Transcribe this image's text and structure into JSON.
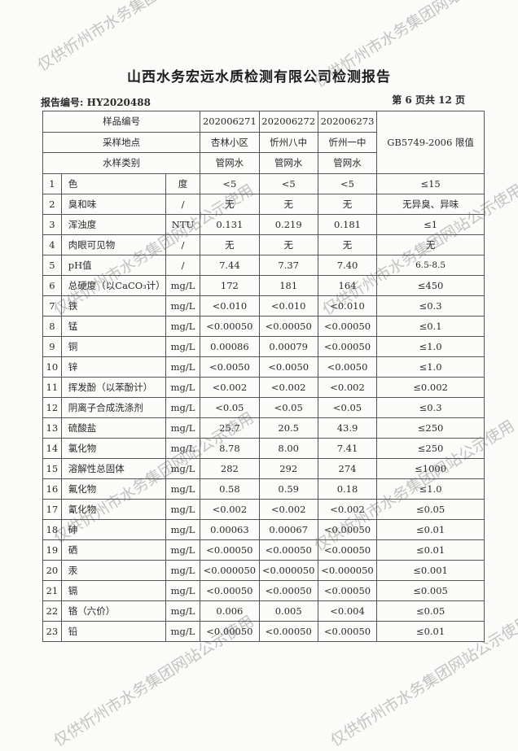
{
  "title": "山西水务宏远水质检测有限公司检测报告",
  "report_no": "报告编号: HY2020488",
  "page_info": "第 6 页共 12 页",
  "watermark": "仅供忻州市水务集团网站公示使用",
  "header": {
    "sample_no_label": "样品编号",
    "location_label": "采样地点",
    "type_label": "水样类别",
    "limit_label": "GB5749-2006 限值",
    "samples": [
      {
        "no": "202006271",
        "location": "杏林小区",
        "type": "管网水"
      },
      {
        "no": "202006272",
        "location": "忻州八中",
        "type": "管网水"
      },
      {
        "no": "202006273",
        "location": "忻州一中",
        "type": "管网水"
      }
    ]
  },
  "rows": [
    {
      "num": "1",
      "name": "色",
      "unit": "度",
      "v": [
        "<5",
        "<5",
        "<5"
      ],
      "limit": "≤15"
    },
    {
      "num": "2",
      "name": "臭和味",
      "unit": "/",
      "v": [
        "无",
        "无",
        "无"
      ],
      "limit": "无异臭、异味"
    },
    {
      "num": "3",
      "name": "浑浊度",
      "unit": "NTU",
      "v": [
        "0.131",
        "0.219",
        "0.181"
      ],
      "limit": "≤1"
    },
    {
      "num": "4",
      "name": "肉眼可见物",
      "unit": "/",
      "v": [
        "无",
        "无",
        "无"
      ],
      "limit": "无"
    },
    {
      "num": "5",
      "name": "pH值",
      "unit": "/",
      "v": [
        "7.44",
        "7.37",
        "7.40"
      ],
      "limit": "6.5-8.5"
    },
    {
      "num": "6",
      "name": "总硬度（以CaCO₃计）",
      "unit": "mg/L",
      "v": [
        "172",
        "181",
        "164"
      ],
      "limit": "≤450"
    },
    {
      "num": "7",
      "name": "铁",
      "unit": "mg/L",
      "v": [
        "<0.010",
        "<0.010",
        "<0.010"
      ],
      "limit": "≤0.3"
    },
    {
      "num": "8",
      "name": "锰",
      "unit": "mg/L",
      "v": [
        "<0.00050",
        "<0.00050",
        "<0.00050"
      ],
      "limit": "≤0.1"
    },
    {
      "num": "9",
      "name": "铜",
      "unit": "mg/L",
      "v": [
        "0.00086",
        "0.00079",
        "<0.00050"
      ],
      "limit": "≤1.0"
    },
    {
      "num": "10",
      "name": "锌",
      "unit": "mg/L",
      "v": [
        "<0.0050",
        "<0.0050",
        "<0.0050"
      ],
      "limit": "≤1.0"
    },
    {
      "num": "11",
      "name": "挥发酚（以苯酚计）",
      "unit": "mg/L",
      "v": [
        "<0.002",
        "<0.002",
        "<0.002"
      ],
      "limit": "≤0.002"
    },
    {
      "num": "12",
      "name": "阴离子合成洗涤剂",
      "unit": "mg/L",
      "v": [
        "<0.05",
        "<0.05",
        "<0.05"
      ],
      "limit": "≤0.3"
    },
    {
      "num": "13",
      "name": "硫酸盐",
      "unit": "mg/L",
      "v": [
        "25.7",
        "20.5",
        "43.9"
      ],
      "limit": "≤250"
    },
    {
      "num": "14",
      "name": "氯化物",
      "unit": "mg/L",
      "v": [
        "8.78",
        "8.00",
        "7.41"
      ],
      "limit": "≤250"
    },
    {
      "num": "15",
      "name": "溶解性总固体",
      "unit": "mg/L",
      "v": [
        "282",
        "292",
        "274"
      ],
      "limit": "≤1000"
    },
    {
      "num": "16",
      "name": "氟化物",
      "unit": "mg/L",
      "v": [
        "0.58",
        "0.59",
        "0.18"
      ],
      "limit": "≤1.0"
    },
    {
      "num": "17",
      "name": "氰化物",
      "unit": "mg/L",
      "v": [
        "<0.002",
        "<0.002",
        "<0.002"
      ],
      "limit": "≤0.05"
    },
    {
      "num": "18",
      "name": "砷",
      "unit": "mg/L",
      "v": [
        "0.00063",
        "0.00067",
        "<0.00050"
      ],
      "limit": "≤0.01"
    },
    {
      "num": "19",
      "name": "硒",
      "unit": "mg/L",
      "v": [
        "<0.00050",
        "<0.00050",
        "<0.00050"
      ],
      "limit": "≤0.01"
    },
    {
      "num": "20",
      "name": "汞",
      "unit": "mg/L",
      "v": [
        "<0.000050",
        "<0.000050",
        "<0.000050"
      ],
      "limit": "≤0.001"
    },
    {
      "num": "21",
      "name": "镉",
      "unit": "mg/L",
      "v": [
        "<0.00050",
        "<0.00050",
        "<0.00050"
      ],
      "limit": "≤0.005"
    },
    {
      "num": "22",
      "name": "铬（六价）",
      "unit": "mg/L",
      "v": [
        "0.006",
        "0.005",
        "<0.004"
      ],
      "limit": "≤0.05"
    },
    {
      "num": "23",
      "name": "铅",
      "unit": "mg/L",
      "v": [
        "<0.00050",
        "<0.00050",
        "<0.00050"
      ],
      "limit": "≤0.01"
    }
  ]
}
